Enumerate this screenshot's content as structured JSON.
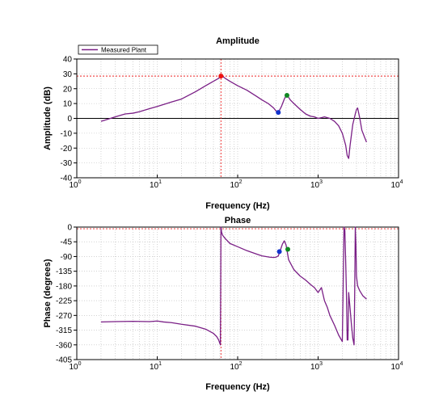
{
  "chart_data": [
    {
      "type": "line",
      "title": "Amplitude",
      "xlabel": "Frequency (Hz)",
      "ylabel": "Amplitude (dB)",
      "x_scale": "log",
      "xlim": [
        1,
        10000
      ],
      "ylim": [
        -40,
        40
      ],
      "x_ticks": [
        1,
        10,
        100,
        1000,
        10000
      ],
      "x_tick_labels": [
        {
          "base": "10",
          "exp": "0"
        },
        {
          "base": "10",
          "exp": "1"
        },
        {
          "base": "10",
          "exp": "2"
        },
        {
          "base": "10",
          "exp": "3"
        },
        {
          "base": "10",
          "exp": "4"
        }
      ],
      "y_ticks": [
        40,
        30,
        20,
        10,
        0,
        -10,
        -20,
        -30,
        -40
      ],
      "grid": true,
      "legend": {
        "position": "top-left",
        "entries": [
          "Measured Plant"
        ]
      },
      "reference_lines": {
        "horizontal": [
          28.5
        ],
        "vertical": [
          62
        ],
        "color": "#ee2222"
      },
      "zero_line": 0,
      "series": [
        {
          "name": "Measured Plant",
          "color": "#7a1f86",
          "x": [
            2,
            3,
            4,
            5,
            6,
            8,
            10,
            15,
            20,
            30,
            40,
            50,
            58,
            62,
            66,
            70,
            80,
            100,
            130,
            170,
            200,
            240,
            280,
            300,
            320,
            350,
            380,
            400,
            420,
            450,
            500,
            600,
            700,
            800,
            900,
            1000,
            1100,
            1200,
            1300,
            1400,
            1600,
            1800,
            2000,
            2200,
            2300,
            2400,
            2500,
            2700,
            2900,
            3000,
            3100,
            3300,
            3500,
            3800,
            4000
          ],
          "y": [
            -2,
            1,
            3,
            3.5,
            4.5,
            6.5,
            8,
            11,
            13,
            18,
            22,
            25,
            27,
            28.5,
            28,
            27,
            25,
            22,
            19,
            15,
            12.5,
            10,
            7,
            5,
            4,
            8,
            13,
            15.5,
            15,
            12.5,
            10,
            6,
            3,
            1.5,
            1,
            0,
            0.5,
            1,
            0.5,
            0,
            -2,
            -5,
            -10,
            -18,
            -25,
            -27,
            -18,
            -4,
            3,
            6,
            7,
            0,
            -8,
            -13,
            -16
          ]
        }
      ],
      "markers": [
        {
          "x": 62,
          "y": 28.5,
          "color": "#ee1111"
        },
        {
          "x": 320,
          "y": 4,
          "color": "#1133cc"
        },
        {
          "x": 410,
          "y": 15.5,
          "color": "#118822"
        }
      ]
    },
    {
      "type": "line",
      "title": "Phase",
      "xlabel": "Frequency (Hz)",
      "ylabel": "Phase (degrees)",
      "x_scale": "log",
      "xlim": [
        1,
        10000
      ],
      "ylim": [
        -405,
        0
      ],
      "x_ticks": [
        1,
        10,
        100,
        1000,
        10000
      ],
      "x_tick_labels": [
        {
          "base": "10",
          "exp": "0"
        },
        {
          "base": "10",
          "exp": "1"
        },
        {
          "base": "10",
          "exp": "2"
        },
        {
          "base": "10",
          "exp": "3"
        },
        {
          "base": "10",
          "exp": "4"
        }
      ],
      "y_ticks": [
        0,
        -45,
        -90,
        -135,
        -180,
        -225,
        -270,
        -315,
        -360,
        -405
      ],
      "grid": true,
      "reference_lines": {
        "horizontal": [
          -5
        ],
        "vertical": [
          62
        ],
        "color": "#ee2222"
      },
      "series": [
        {
          "name": "Measured Plant",
          "color": "#7a1f86",
          "x": [
            2,
            3,
            5,
            8,
            10,
            12,
            15,
            20,
            30,
            40,
            50,
            55,
            58,
            60,
            61,
            61.5,
            62,
            62.5,
            63,
            65,
            70,
            80,
            100,
            130,
            170,
            200,
            250,
            280,
            300,
            320,
            340,
            360,
            380,
            400,
            430,
            500,
            600,
            700,
            800,
            900,
            1000,
            1100,
            1200,
            1300,
            1400,
            1600,
            1800,
            2000,
            2100,
            2150,
            2200,
            2250,
            2300,
            2350,
            2400,
            2500,
            2600,
            2700,
            2800,
            2850,
            2900,
            2950,
            3000,
            3100,
            3300,
            3600,
            4000
          ],
          "y": [
            -290,
            -289,
            -288,
            -289,
            -287,
            -290,
            -292,
            -297,
            -303,
            -312,
            -325,
            -335,
            -345,
            -355,
            -360,
            -200,
            0,
            -5,
            -15,
            -25,
            -35,
            -50,
            -60,
            -72,
            -82,
            -88,
            -92,
            -93,
            -92,
            -88,
            -70,
            -52,
            -42,
            -55,
            -100,
            -130,
            -150,
            -162,
            -175,
            -185,
            -200,
            -185,
            -225,
            -245,
            -270,
            -300,
            -330,
            -350,
            0,
            -10,
            -100,
            -200,
            -345,
            -345,
            -200,
            -250,
            -300,
            -340,
            -360,
            -200,
            0,
            -50,
            -150,
            -180,
            -195,
            -210,
            -220
          ]
        }
      ],
      "markers": [
        {
          "x": 330,
          "y": -75,
          "color": "#1133cc"
        },
        {
          "x": 420,
          "y": -68,
          "color": "#118822"
        }
      ]
    }
  ]
}
